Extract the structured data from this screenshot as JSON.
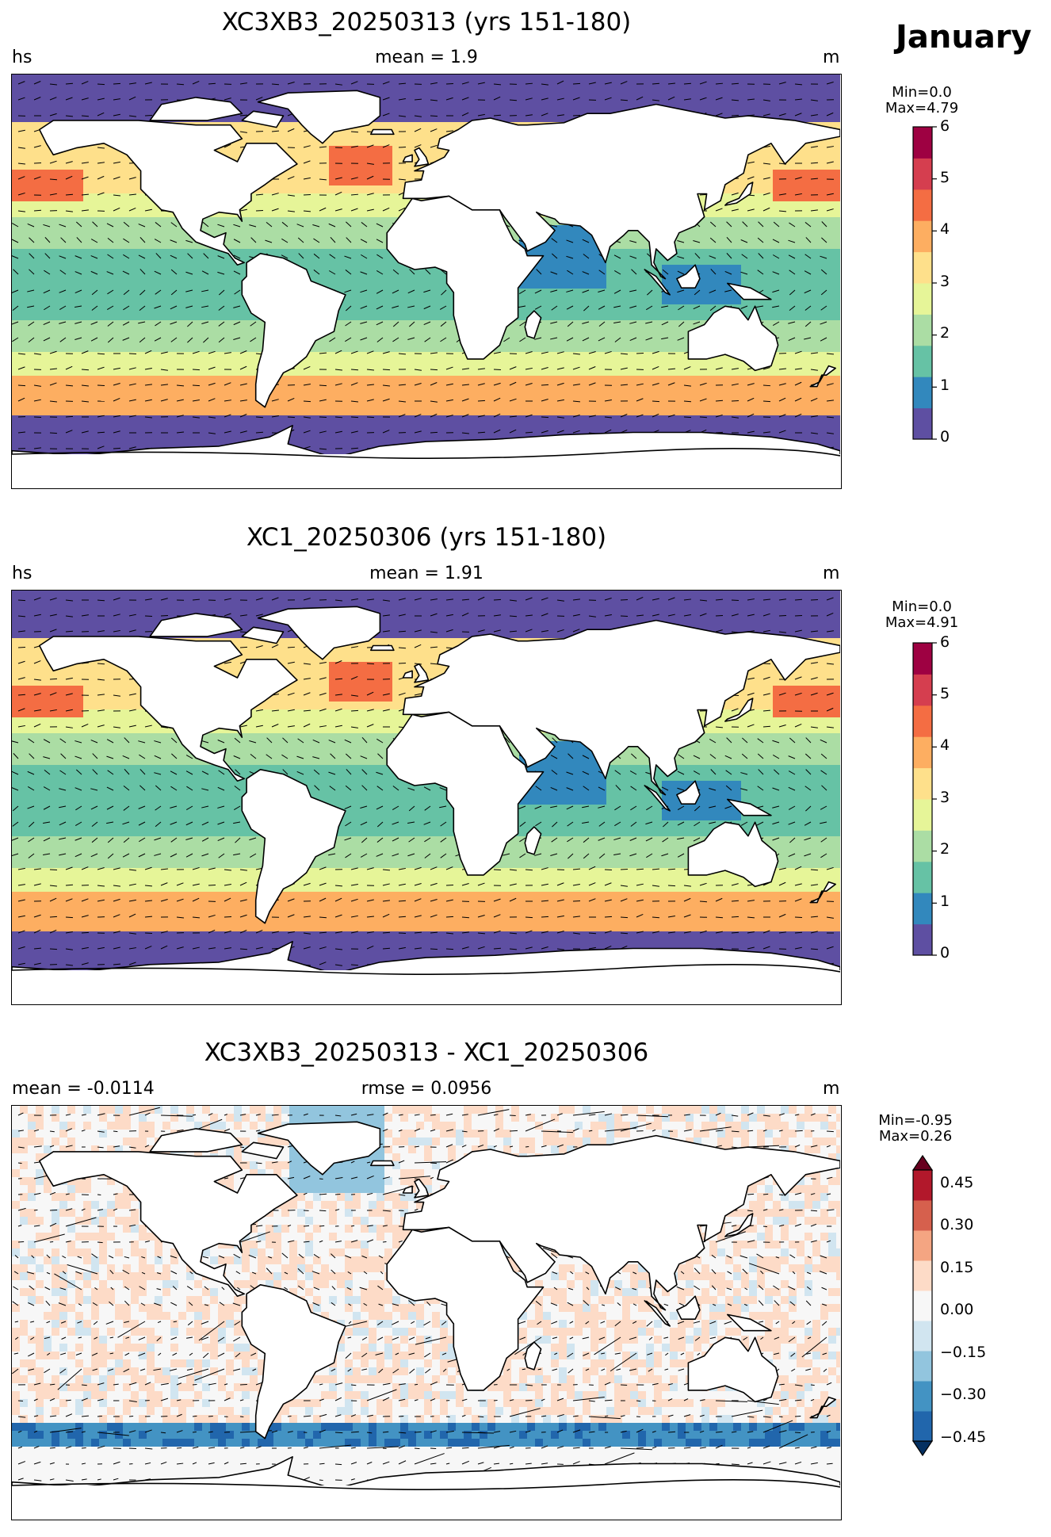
{
  "month": "January",
  "panels": [
    {
      "title": "XC3XB3_20250313 (yrs 151-180)",
      "left_label": "hs",
      "center_label": "mean = 1.9",
      "right_label": "m",
      "min_text": "Min=0.0",
      "max_text": "Max=4.79",
      "colorbar": {
        "ticks": [
          "0",
          "1",
          "2",
          "3",
          "4",
          "5",
          "6"
        ],
        "colors": [
          "#5e4fa2",
          "#3288bd",
          "#66c2a5",
          "#abdda4",
          "#e6f598",
          "#fee08b",
          "#fdae61",
          "#f46d43",
          "#d53e4f",
          "#9e0142"
        ]
      }
    },
    {
      "title": "XC1_20250306 (yrs 151-180)",
      "left_label": "hs",
      "center_label": "mean = 1.91",
      "right_label": "m",
      "min_text": "Min=0.0",
      "max_text": "Max=4.91",
      "colorbar": {
        "ticks": [
          "0",
          "1",
          "2",
          "3",
          "4",
          "5",
          "6"
        ],
        "colors": [
          "#5e4fa2",
          "#3288bd",
          "#66c2a5",
          "#abdda4",
          "#e6f598",
          "#fee08b",
          "#fdae61",
          "#f46d43",
          "#d53e4f",
          "#9e0142"
        ]
      }
    },
    {
      "title": "XC3XB3_20250313 - XC1_20250306",
      "left_label": "mean = -0.0114",
      "center_label": "rmse = 0.0956",
      "right_label": "m",
      "min_text": "Min=-0.95",
      "max_text": "Max=0.26",
      "colorbar": {
        "ticks": [
          "−0.45",
          "−0.30",
          "−0.15",
          "0.00",
          "0.15",
          "0.30",
          "0.45"
        ],
        "colors": [
          "#053061",
          "#2166ac",
          "#4393c3",
          "#92c5de",
          "#d1e5f0",
          "#f7f7f7",
          "#fddbc7",
          "#f4a582",
          "#d6604d",
          "#b2182b",
          "#67001f"
        ]
      }
    }
  ]
}
